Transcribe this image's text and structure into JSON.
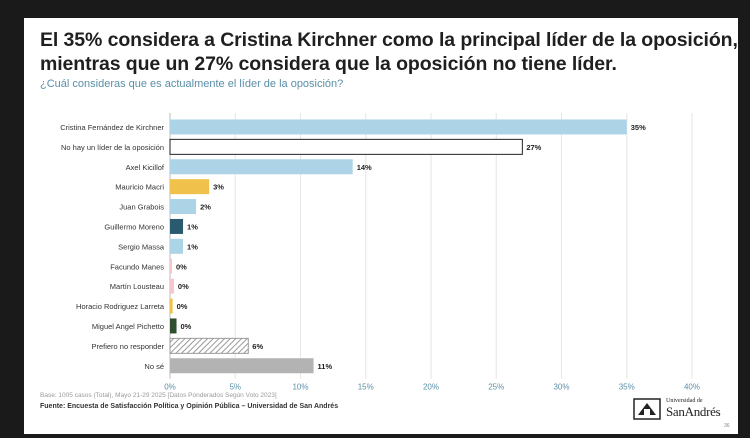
{
  "slide": {
    "page_number": "36",
    "footnote": "Base: 1005 casos (Total), Mayo 21-29 2025 [Datos Ponderados Según Voto 2023]",
    "source": "Fuente: Encuesta de Satisfacción Política y Opinión Pública – Universidad de San Andrés",
    "logo": {
      "top": "Universidad de",
      "main": "SanAndrés"
    }
  },
  "chart_data": {
    "type": "bar",
    "orientation": "horizontal",
    "title": "El 35% considera a Cristina Kirchner como la principal líder de la oposición, mientras que un 27% considera que la oposición no tiene líder.",
    "subtitle": "¿Cuál consideras que es actualmente el líder de la oposición?",
    "categories": [
      "Cristina Fernández de Kirchner",
      "No hay un líder de la oposición",
      "Axel Kicillof",
      "Mauricio Macri",
      "Juan Grabois",
      "Guillermo Moreno",
      "Sergio Massa",
      "Facundo Manes",
      "Martín Lousteau",
      "Horacio Rodriguez Larreta",
      "Miguel Angel Pichetto",
      "Prefiero no responder",
      "No sé"
    ],
    "values": [
      35,
      27,
      14,
      3,
      2,
      1,
      1,
      0.1,
      0.3,
      0.2,
      0.5,
      6,
      11
    ],
    "value_labels": [
      "35%",
      "27%",
      "14%",
      "3%",
      "2%",
      "1%",
      "1%",
      "0%",
      "0%",
      "0%",
      "0%",
      "6%",
      "11%"
    ],
    "colors": [
      "#acd4e6",
      "#ffffff",
      "#acd4e6",
      "#f0c14b",
      "#acd4e6",
      "#2a5a6e",
      "#acd4e6",
      "#f5c6cc",
      "#f5c6cc",
      "#f0c14b",
      "#2f4f2f",
      "hatch",
      "#b3b3b3"
    ],
    "xlim": [
      0,
      40
    ],
    "xticks": [
      0,
      5,
      10,
      15,
      20,
      25,
      30,
      35,
      40
    ],
    "xtick_labels": [
      "0%",
      "5%",
      "10%",
      "15%",
      "20%",
      "25%",
      "30%",
      "35%",
      "40%"
    ],
    "grid": "vertical"
  }
}
